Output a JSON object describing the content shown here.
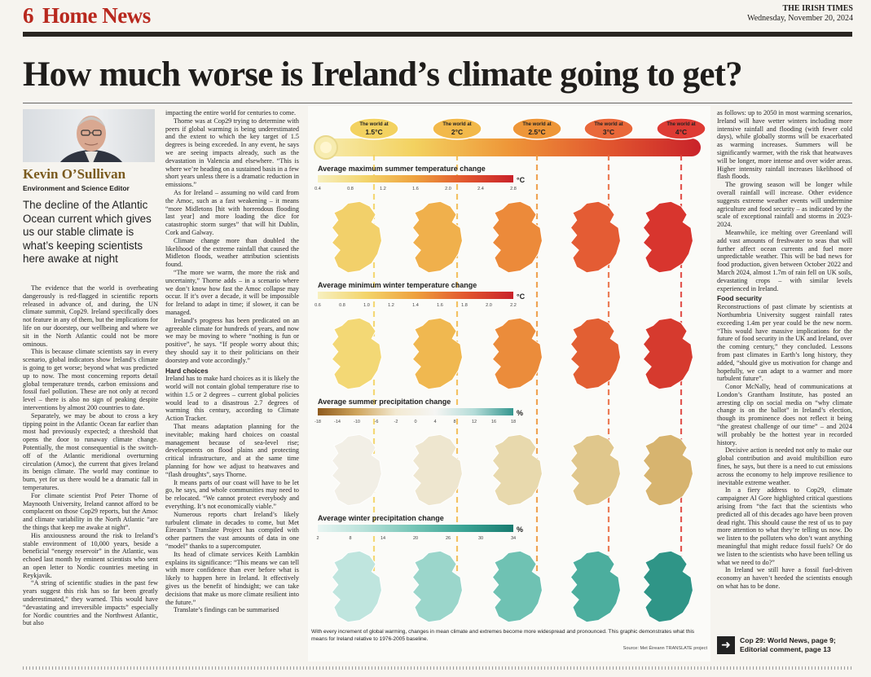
{
  "masthead": {
    "page_number": "6",
    "section": "Home News",
    "paper_name": "THE IRISH TIMES",
    "date": "Wednesday, November 20, 2024"
  },
  "headline": "How much worse is Ireland’s climate going to get?",
  "author": {
    "name": "Kevin O’Sullivan",
    "role": "Environment and Science Editor"
  },
  "standfirst": "The decline of the Atlantic Ocean current which gives us our stable climate is what’s keeping scientists here awake at night",
  "col1": [
    "The evidence that the world is overheating dangerously is red-flagged in scientific reports released in advance of, and during, the UN climate summit, Cop29. Ireland specifically does not feature in any of them, but the implications for life on our doorstep, our wellbeing and where we sit in the North Atlantic could not be more ominous.",
    "This is because climate scientists say in every scenario, global indicators show Ireland’s climate is going to get worse; beyond what was predicted up to now. The most concerning reports detail global temperature trends, carbon emissions and fossil fuel pollution. These are not only at record level – there is also no sign of peaking despite interventions by almost 200 countries to date.",
    "Separately, we may be about to cross a key tipping point in the Atlantic Ocean far earlier than most had previously expected; a threshold that opens the door to runaway climate change. Potentially, the most consequential is the switch-off of the Atlantic meridional overturning circulation (Amoc), the current that gives Ireland its benign climate. The world may continue to burn, yet for us there would be a dramatic fall in temperatures.",
    "For climate scientist Prof Peter Thorne of Maynooth University, Ireland cannot afford to be complacent on those Cop29 reports, but the Amoc and climate variability in the North Atlantic “are the things that keep me awake at night”.",
    "His anxiousness around the risk to Ireland’s stable environment of 10,000 years, beside a beneficial “energy reservoir” in the Atlantic, was echoed last month by eminent scientists who sent an open letter to Nordic countries meeting in Reykjavik.",
    "“A string of scientific studies in the past few years suggest this risk has so far been greatly underestimated,” they warned. This would have “devastating and irreversible impacts” especially for Nordic countries and the Northwest Atlantic, but also"
  ],
  "col2": [
    "impacting the entire world for centuries to come.",
    "Thorne was at Cop29 trying to determine with peers if global warming is being underestimated and the extent to which the key target of 1.5 degrees is being exceeded. In any event, he says we are seeing impacts already, such as the devastation in Valencia and elsewhere. “This is where we’re heading on a sustained basis in a few short years unless there is a dramatic reduction in emissions.”",
    "As for Ireland – assuming no wild card from the Amoc, such as a fast weakening – it means “more Midletons [hit with horrendous flooding last year] and more loading the dice for catastrophic storm surges” that will hit Dublin, Cork and Galway.",
    "Climate change more than doubled the likelihood of the extreme rainfall that caused the Midleton floods, weather attribution scientists found.",
    "“The more we warm, the more the risk and uncertainty,” Thorne adds – in a scenario where we don’t know how fast the Amoc collapse may occur. If it’s over a decade, it will be impossible for Ireland to adapt in time; if slower, it can be managed.",
    "Ireland’s progress has been predicated on an agreeable climate for hundreds of years, and now we may be moving to where “nothing is fun or positive”, he says. “If people worry about this; they should say it to their politicians on their doorstep and vote accordingly.”"
  ],
  "col2_heading": "Hard choices",
  "col2b": [
    "Ireland has to make hard choices as it is likely the world will not contain global temperature rise to within 1.5 or 2 degrees – current global policies would lead to a disastrous 2.7 degrees of warming this century, according to Climate Action Tracker.",
    "That means adaptation planning for the inevitable; making hard choices on coastal management because of sea-level rise; developments on flood plains and protecting critical infrastructure, and at the same time planning for how we adjust to heatwaves and “flash droughts”, says Thorne.",
    "It means parts of our coast will have to be let go, he says, and whole communities may need to be relocated. “We cannot protect everybody and everything. It’s not economically viable.”",
    "Numerous reports chart Ireland’s likely turbulent climate in decades to come, but Met Éireann’s Translate Project has compiled with other partners the vast amounts of data in one “model” thanks to a supercomputer.",
    "Its head of climate services Keith Lambkin explains its significance: “This means we can tell with more confidence than ever before what is likely to happen here in Ireland. It effectively gives us the benefit of hindsight; we can take decisions that make us more climate resilient into the future.”",
    "Translate’s findings can be summarised"
  ],
  "col4": [
    "as follows: up to 2050 in most warming scenarios, Ireland will have wetter winters including more intensive rainfall and flooding (with fewer cold days), while globally storms will be exacerbated as warming increases. Summers will be significantly warmer, with the risk that heatwaves will be longer, more intense and over wider areas. Higher intensity rainfall increases likelihood of flash floods.",
    "The growing season will be longer while overall rainfall will increase. Other evidence suggests extreme weather events will undermine agriculture and food security – as indicated by the scale of exceptional rainfall and storms in 2023-2024.",
    "Meanwhile, ice melting over Greenland will add vast amounts of freshwater to seas that will further affect ocean currents and fuel more unpredictable weather. This will be bad news for food production, given between October 2022 and March 2024, almost 1.7m of rain fell on UK soils, devastating crops – with similar levels experienced in Ireland."
  ],
  "col4_heading": "Food security",
  "col4b": [
    "Reconstructions of past climate by scientists at Northumbria University suggest rainfall rates exceeding 1.4m per year could be the new norm. “This would have massive implications for the future of food security in the UK and Ireland, over the coming century,” they concluded. Lessons from past climates in Earth’s long history, they added, “should give us motivation for change and hopefully, we can adapt to a warmer and more turbulent future”.",
    "Conor McNally, head of communications at London’s Grantham Institute, has posted an arresting clip on social media on “why climate change is on the ballot” in Ireland’s election, though its prominence does not reflect it being “the greatest challenge of our time” – and 2024 will probably be the hottest year in recorded history.",
    "Decisive action is needed not only to make our global contribution and avoid multibillion euro fines, he says, but there is a need to cut emissions across the economy to help improve resilience to inevitable extreme weather.",
    "In a fiery address to Cop29, climate campaigner Al Gore highlighted critical questions arising from “the fact that the scientists who predicted all of this decades ago have been proven dead right. This should cause the rest of us to pay more attention to what they’re telling us now. Do we listen to the polluters who don’t want anything meaningful that might reduce fossil fuels? Or do we listen to the scientists who have been telling us what we need to do?”",
    "In Ireland we still have a fossil fuel-driven economy an haven’t heeded the scientists enough on what has to be done."
  ],
  "crossref": {
    "line1": "Cop 29: World News, page 9;",
    "line2": "Editorial comment, page 13"
  },
  "graphic": {
    "world_prefix": "The world at",
    "scenarios": [
      "1.5°C",
      "2°C",
      "2.5°C",
      "3°C",
      "4°C"
    ],
    "scenario_colors": [
      "#f3d260",
      "#f2b94a",
      "#ee9638",
      "#e9683a",
      "#de3b34"
    ],
    "panels": [
      {
        "title": "Average maximum summer temperature change",
        "unit": "°C",
        "ticks": [
          "0.4",
          "0.8",
          "1.2",
          "1.6",
          "2.0",
          "2.4",
          "2.8"
        ],
        "scale": [
          "#f7f0c0",
          "#f3d46a",
          "#eea13e",
          "#e2582f",
          "#c9222a"
        ],
        "map_colors": [
          "#f2d06a",
          "#f0b04c",
          "#ec8a3a",
          "#e45c34",
          "#d8352e"
        ]
      },
      {
        "title": "Average minimum winter temperature change",
        "unit": "°C",
        "ticks": [
          "0.6",
          "0.8",
          "1.0",
          "1.2",
          "1.4",
          "1.6",
          "1.8",
          "2.0",
          "2.2"
        ],
        "scale": [
          "#f7f0c0",
          "#f3d46a",
          "#eea13e",
          "#e2582f",
          "#c9222a"
        ],
        "map_colors": [
          "#f3d875",
          "#f0b850",
          "#eb8c3b",
          "#e25f33",
          "#d63a2e"
        ]
      },
      {
        "title": "Average summer precipitation change",
        "unit": "%",
        "ticks": [
          "-18",
          "-14",
          "-10",
          "-6",
          "-2",
          "0",
          "4",
          "8",
          "12",
          "16",
          "18"
        ],
        "scale": [
          "#8e5a1d",
          "#cfa55c",
          "#f3ead2",
          "#f5f5f3",
          "#b4dcd8",
          "#35978f"
        ],
        "map_colors": [
          "#f2efe6",
          "#eee6cf",
          "#e8d9ad",
          "#e0c78c",
          "#d7b46f"
        ]
      },
      {
        "title": "Average winter precipitation change",
        "unit": "%",
        "ticks": [
          "2",
          "8",
          "14",
          "20",
          "26",
          "30",
          "34"
        ],
        "scale": [
          "#e8f5f2",
          "#b5e0d8",
          "#73c4b5",
          "#3aa394",
          "#187b70"
        ],
        "map_colors": [
          "#bfe5de",
          "#9bd6cb",
          "#6fc2b3",
          "#4cae9e",
          "#2f9587"
        ]
      }
    ],
    "caption": "With every increment of global warming, changes in mean climate and extremes become more widespread and pronounced. This graphic demonstrates what this means for Ireland relative to 1976-2005 baseline.",
    "source": "Source: Met Éireann TRANSLATE project"
  }
}
